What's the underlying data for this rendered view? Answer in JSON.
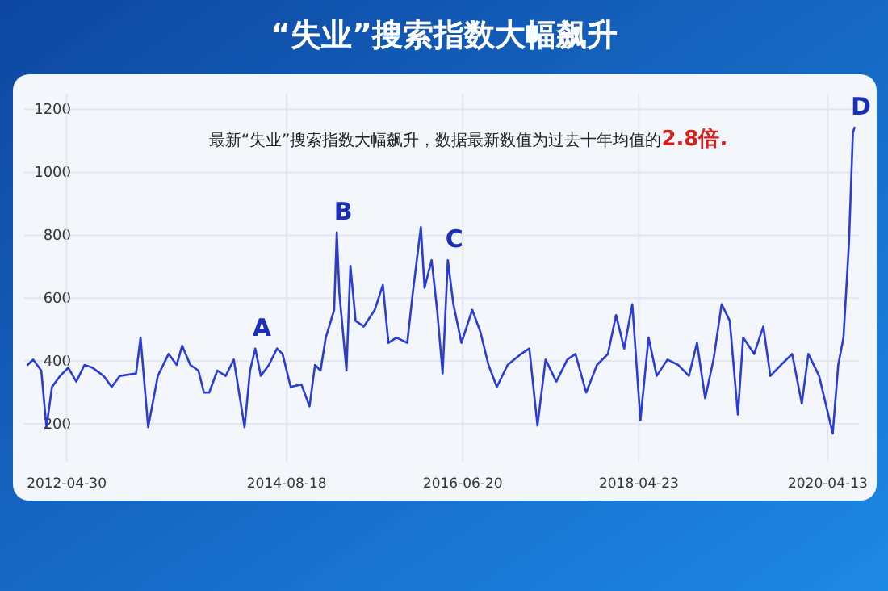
{
  "chart_data": {
    "type": "line",
    "title": "“失业”搜索指数大幅飙升",
    "annotations": [
      "最新“失业”搜索指数大幅飙升，数据最新数值为过去十年均值的**2.8倍.**",
      {
        "text": "A",
        "x": "2014-04-20",
        "y": 440
      },
      {
        "text": "B",
        "x": "2015-02-25",
        "y": 809
      },
      {
        "text": "C",
        "x": "2016-04-24",
        "y": 721
      },
      {
        "text": "D",
        "x": "2020-07-24",
        "y": 1142
      }
    ],
    "color": "#2a3bd6",
    "grid": true,
    "xlim": [
      "2011-11-20",
      "2020-08-10"
    ],
    "ylim": [
      80,
      1250
    ],
    "xticks": [
      "2012-04-30",
      "2014-08-18",
      "2016-06-20",
      "2018-04-23",
      "2020-04-13"
    ],
    "yticks": [
      200,
      400,
      600,
      800,
      1000,
      1200
    ],
    "x": [
      "2011-12-03",
      "2011-12-24",
      "2012-01-24",
      "2012-02-13",
      "2012-03-05",
      "2012-04-05",
      "2012-05-06",
      "2012-06-06",
      "2012-07-07",
      "2012-08-07",
      "2012-09-18",
      "2012-10-19",
      "2012-11-19",
      "2013-01-20",
      "2013-02-06",
      "2013-03-07",
      "2013-04-13",
      "2013-05-24",
      "2013-06-24",
      "2013-07-15",
      "2013-08-15",
      "2013-09-15",
      "2013-10-06",
      "2013-10-26",
      "2013-11-26",
      "2013-12-28",
      "2014-01-28",
      "2014-03-10",
      "2014-03-31",
      "2014-04-20",
      "2014-05-11",
      "2014-06-11",
      "2014-07-12",
      "2014-08-02",
      "2014-09-02",
      "2014-10-13",
      "2014-11-13",
      "2014-12-04",
      "2014-12-25",
      "2015-01-14",
      "2015-02-15",
      "2015-02-25",
      "2015-03-07",
      "2015-04-03",
      "2015-04-18",
      "2015-05-08",
      "2015-06-08",
      "2015-07-20",
      "2015-08-20",
      "2015-09-10",
      "2015-10-11",
      "2015-11-21",
      "2015-12-12",
      "2016-01-12",
      "2016-01-26",
      "2016-02-22",
      "2016-03-14",
      "2016-04-04",
      "2016-04-24",
      "2016-05-15",
      "2016-06-15",
      "2016-07-26",
      "2016-08-26",
      "2016-09-26",
      "2016-10-28",
      "2016-12-08",
      "2017-01-29",
      "2017-03-01",
      "2017-04-01",
      "2017-05-02",
      "2017-06-12",
      "2017-07-24",
      "2017-08-24",
      "2017-10-04",
      "2017-11-14",
      "2017-12-26",
      "2018-01-26",
      "2018-02-26",
      "2018-03-29",
      "2018-04-29",
      "2018-05-30",
      "2018-06-30",
      "2018-08-10",
      "2018-09-20",
      "2018-10-31",
      "2018-12-01",
      "2019-01-01",
      "2019-02-02",
      "2019-03-05",
      "2019-04-05",
      "2019-05-06",
      "2019-05-26",
      "2019-07-07",
      "2019-08-11",
      "2019-09-07",
      "2019-10-18",
      "2019-11-29",
      "2020-01-05",
      "2020-01-30",
      "2020-03-11",
      "2020-05-02",
      "2020-05-23",
      "2020-06-12",
      "2020-07-03",
      "2020-07-18",
      "2020-07-24"
    ],
    "values": [
      388,
      405,
      370,
      190,
      318,
      353,
      379,
      335,
      388,
      379,
      353,
      318,
      353,
      361,
      475,
      190,
      353,
      423,
      388,
      449,
      388,
      370,
      300,
      300,
      370,
      353,
      405,
      190,
      370,
      440,
      353,
      388,
      440,
      423,
      318,
      326,
      256,
      388,
      370,
      475,
      563,
      809,
      616,
      370,
      703,
      528,
      510,
      563,
      642,
      458,
      475,
      458,
      616,
      826,
      633,
      721,
      563,
      361,
      721,
      581,
      458,
      563,
      493,
      388,
      318,
      388,
      423,
      440,
      195,
      405,
      335,
      405,
      423,
      300,
      388,
      423,
      546,
      440,
      581,
      212,
      475,
      353,
      405,
      388,
      353,
      458,
      282,
      405,
      581,
      528,
      230,
      475,
      423,
      510,
      353,
      388,
      423,
      265,
      423,
      353,
      170,
      388,
      475,
      774,
      1125,
      1142
    ]
  }
}
